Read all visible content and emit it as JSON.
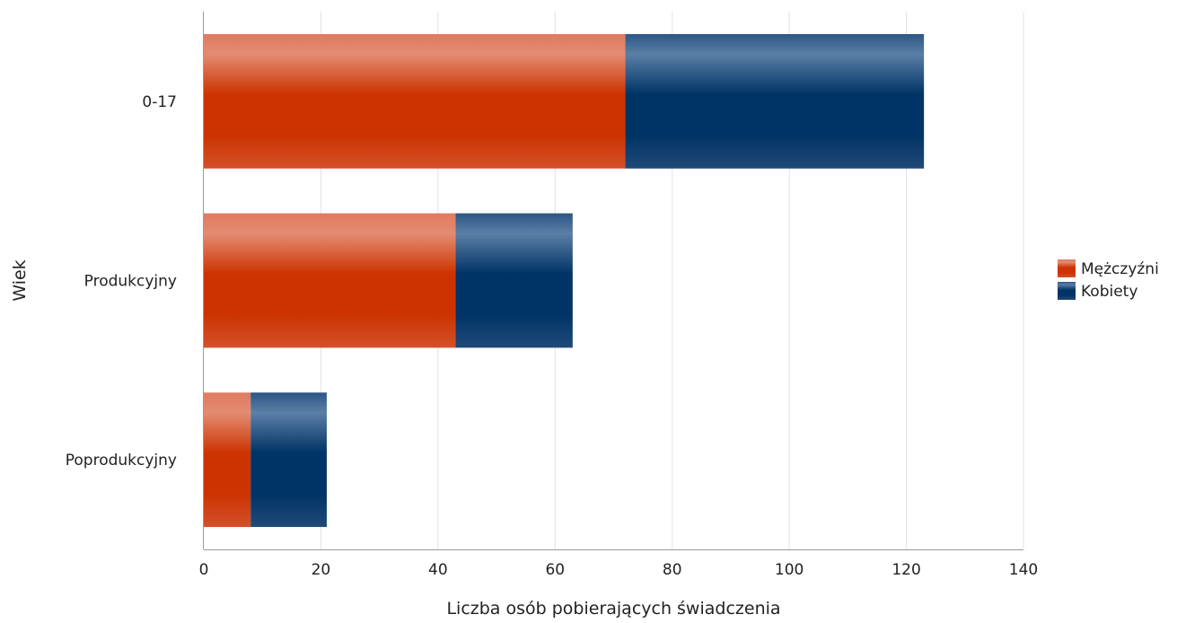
{
  "chart_data": {
    "type": "bar",
    "orientation": "horizontal",
    "stacked": true,
    "categories": [
      "0-17",
      "Produkcyjny",
      "Poprodukcyjny"
    ],
    "series": [
      {
        "name": "Mężczyźni",
        "values": [
          72,
          43,
          8
        ],
        "color": "#cc3300"
      },
      {
        "name": "Kobiety",
        "values": [
          51,
          20,
          13
        ],
        "color": "#003366"
      }
    ],
    "xlabel": "Liczba osób pobierających świadczenia",
    "ylabel": "Wiek",
    "xlim": [
      0,
      140
    ],
    "xticks": [
      0,
      20,
      40,
      60,
      80,
      100,
      120,
      140
    ],
    "grid": true,
    "legend_position": "right"
  }
}
